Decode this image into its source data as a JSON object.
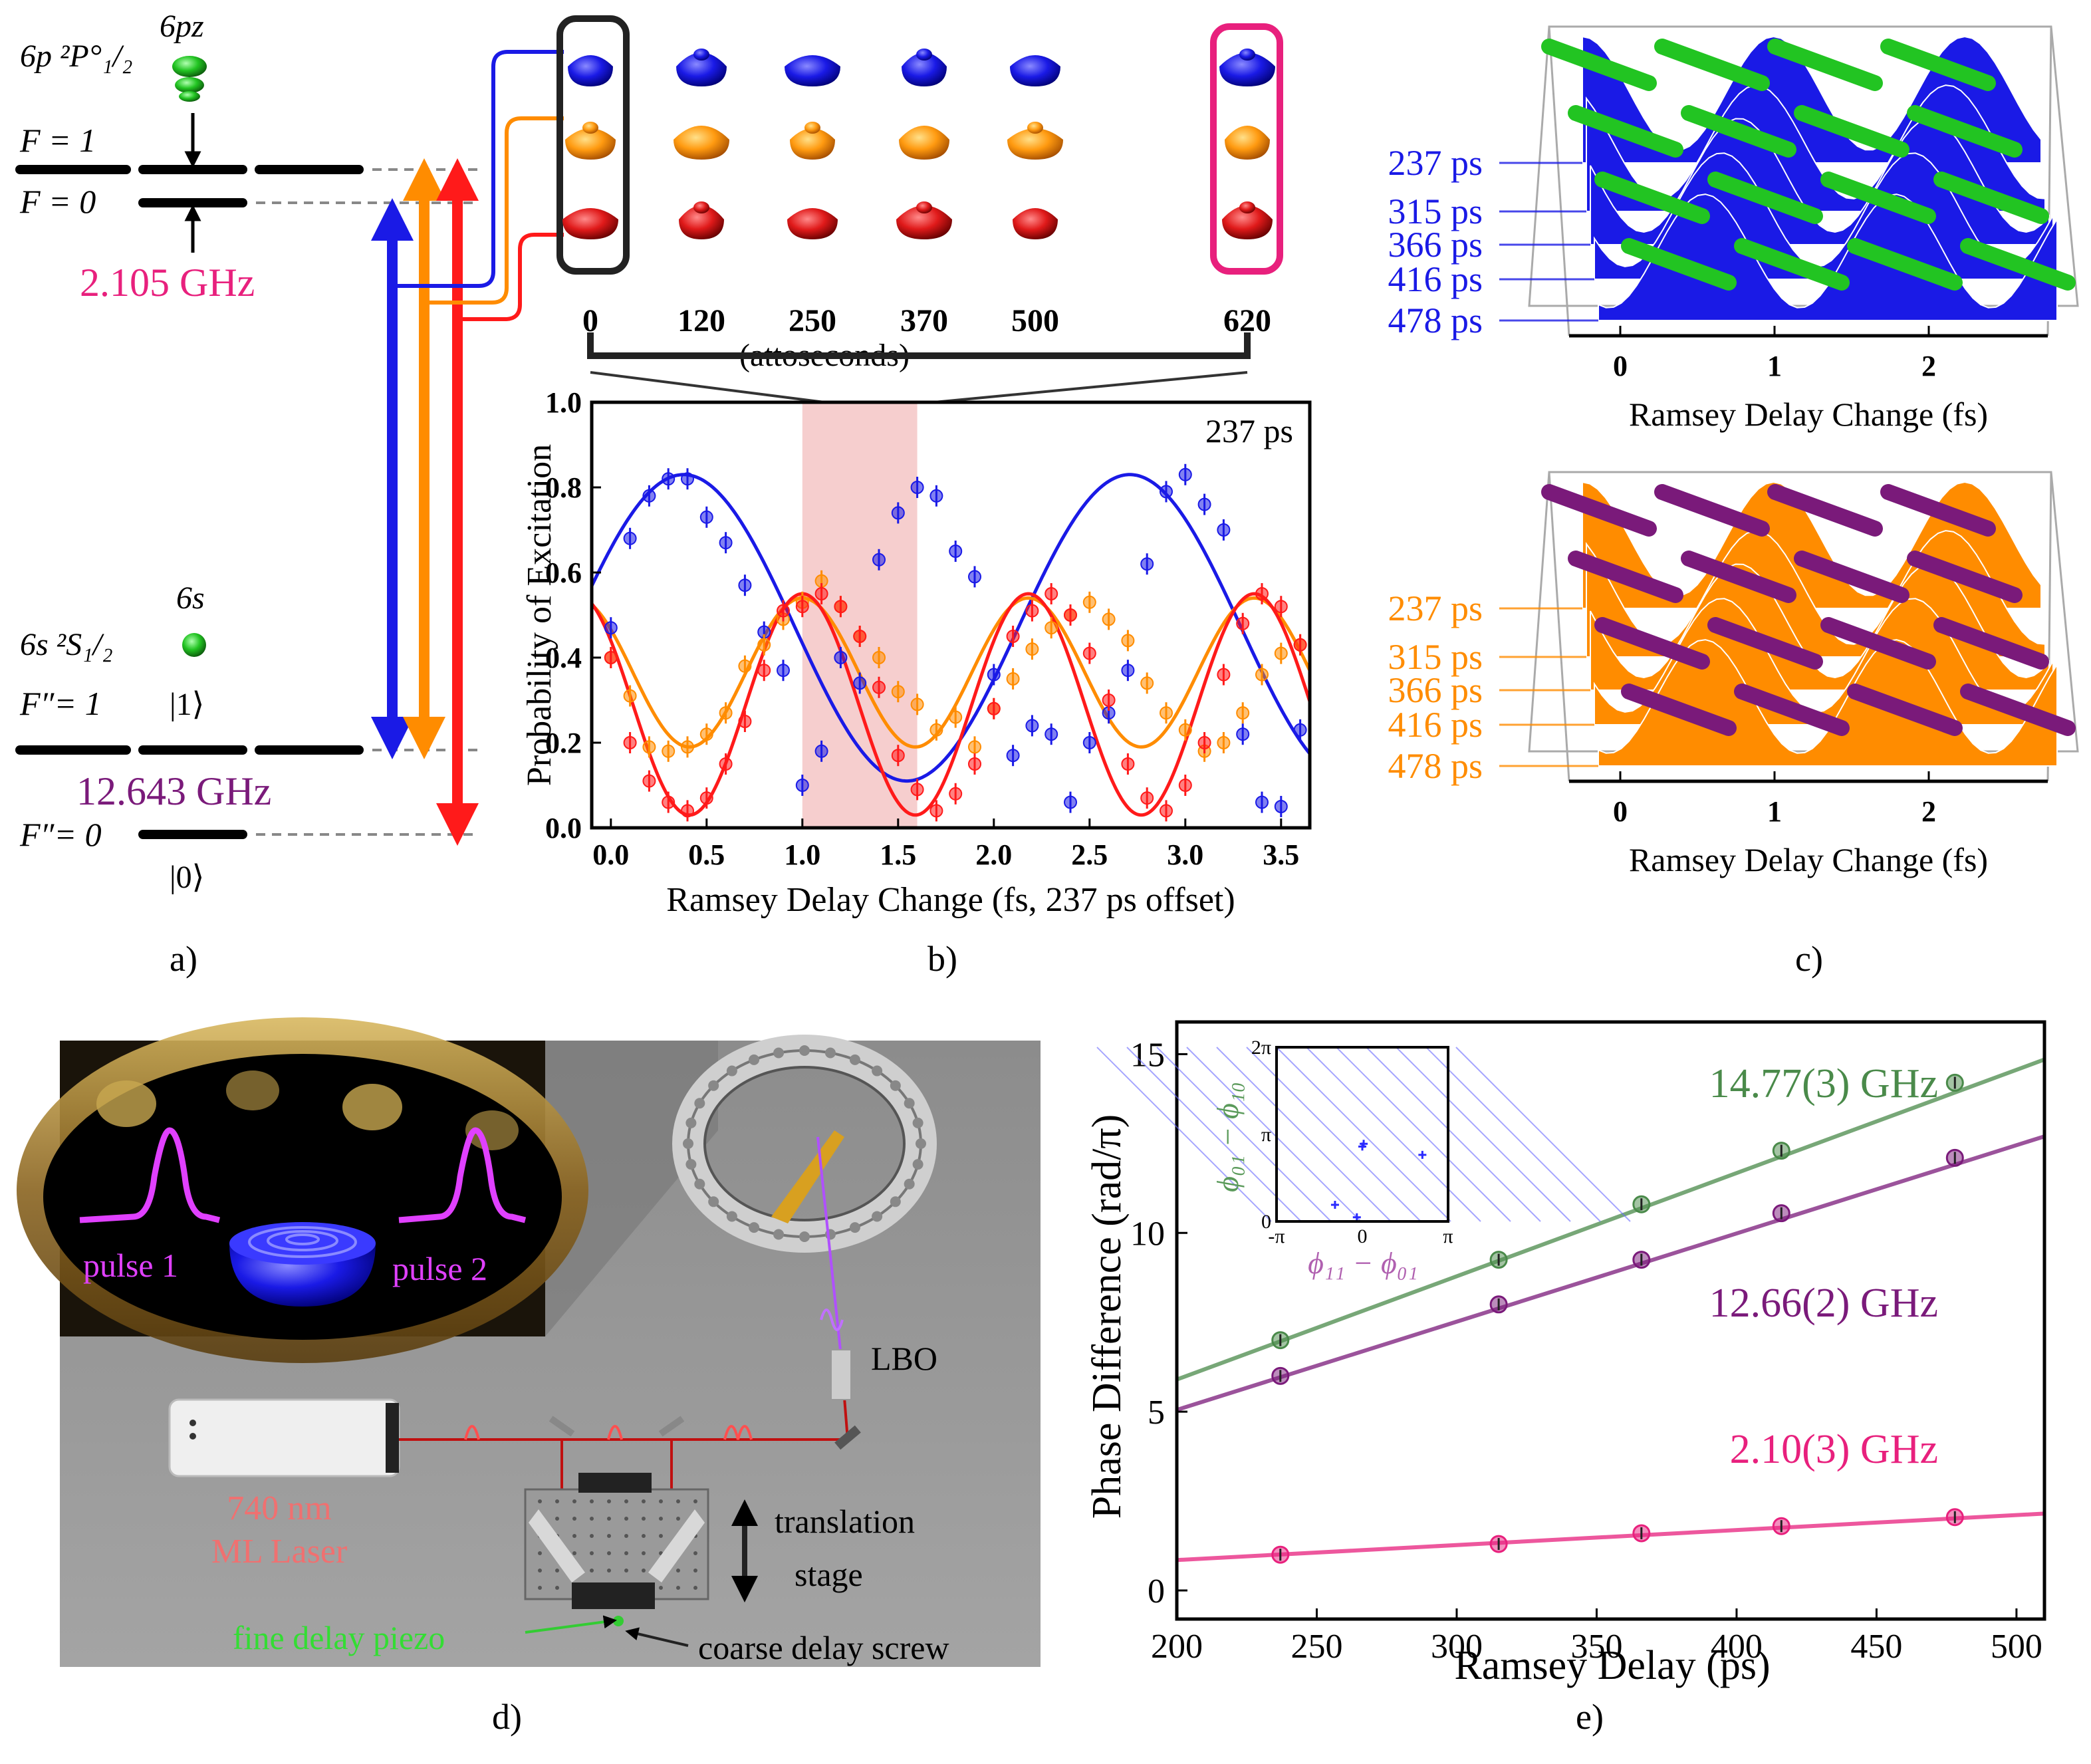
{
  "panel_labels": {
    "a": "a)",
    "b": "b)",
    "c": "c)",
    "d": "d)",
    "e": "e)"
  },
  "colors": {
    "blue": "#1a1ae6",
    "orange": "#ff8c00",
    "red": "#ff1a1a",
    "magenta": "#e8207d",
    "purple": "#7a1a7a",
    "green": "#4a8a4a",
    "pink": "#f5c6c6",
    "leaf_green": "#22c422"
  },
  "level_diagram": {
    "p_state": "6p ²P°₁/₂",
    "pz_label": "6pz",
    "f1": "F = 1",
    "f0": "F = 0",
    "p_splitting": "2.105 GHz",
    "s_state": "6s ²S₁/₂",
    "s_label": "6s",
    "ket1": "|1⟩",
    "fpp1": "F″= 1",
    "s_splitting": "12.643 GHz",
    "fpp0": "F″= 0",
    "ket0": "|0⟩"
  },
  "attosecond_axis": {
    "ticks": [
      "0",
      "120",
      "250",
      "370",
      "500",
      "620"
    ],
    "unit": "(attoseconds)"
  },
  "chart_data": [
    {
      "id": "b",
      "type": "scatter",
      "title": "",
      "annotation": "237 ps",
      "xlabel": "Ramsey Delay Change (fs, 237 ps offset)",
      "ylabel": "Probability of Excitation",
      "xlim": [
        -0.1,
        3.65
      ],
      "ylim": [
        0.0,
        1.0
      ],
      "xticks": [
        "0.0",
        "0.5",
        "1.0",
        "1.5",
        "2.0",
        "2.5",
        "3.0",
        "3.5"
      ],
      "yticks": [
        "0.0",
        "0.2",
        "0.4",
        "0.6",
        "0.8",
        "1.0"
      ],
      "shaded_region": [
        1.0,
        1.6
      ],
      "x": [
        0.0,
        0.1,
        0.2,
        0.3,
        0.4,
        0.5,
        0.6,
        0.7,
        0.8,
        0.9,
        1.0,
        1.1,
        1.2,
        1.3,
        1.4,
        1.5,
        1.6,
        1.7,
        1.8,
        1.9,
        2.0,
        2.1,
        2.2,
        2.3,
        2.4,
        2.5,
        2.6,
        2.7,
        2.8,
        2.9,
        3.0,
        3.1,
        3.2,
        3.3,
        3.4,
        3.5,
        3.6
      ],
      "series": [
        {
          "name": "|0⟩ → F=1",
          "color": "blue",
          "values": [
            0.47,
            0.68,
            0.78,
            0.82,
            0.82,
            0.73,
            0.67,
            0.57,
            0.46,
            0.37,
            0.1,
            0.18,
            0.4,
            0.34,
            0.63,
            0.74,
            0.8,
            0.78,
            0.65,
            0.59,
            0.36,
            0.17,
            0.24,
            0.22,
            0.06,
            0.2,
            0.27,
            0.37,
            0.62,
            0.79,
            0.83,
            0.76,
            0.7,
            0.22,
            0.06,
            0.05,
            0.23
          ]
        },
        {
          "name": "|1⟩ → F=0",
          "color": "orange",
          "values": [
            0.4,
            0.31,
            0.19,
            0.18,
            0.19,
            0.22,
            0.27,
            0.38,
            0.43,
            0.49,
            0.53,
            0.58,
            0.52,
            0.45,
            0.4,
            0.32,
            0.29,
            0.23,
            0.26,
            0.19,
            0.28,
            0.35,
            0.42,
            0.47,
            0.5,
            0.53,
            0.49,
            0.44,
            0.34,
            0.27,
            0.23,
            0.18,
            0.2,
            0.27,
            0.36,
            0.41,
            0.43
          ]
        },
        {
          "name": "|1⟩ → F=1",
          "color": "red",
          "values": [
            0.4,
            0.2,
            0.11,
            0.06,
            0.04,
            0.07,
            0.15,
            0.25,
            0.37,
            0.51,
            0.52,
            0.55,
            0.52,
            0.45,
            0.33,
            0.17,
            0.09,
            0.04,
            0.08,
            0.15,
            0.28,
            0.45,
            0.51,
            0.55,
            0.5,
            0.41,
            0.3,
            0.15,
            0.07,
            0.04,
            0.1,
            0.2,
            0.36,
            0.48,
            0.55,
            0.52,
            0.43
          ]
        }
      ],
      "fits": [
        {
          "color": "blue",
          "offset": 0.47,
          "amp": 0.36,
          "period": 2.33,
          "x_peak": 0.38
        },
        {
          "color": "orange",
          "offset": 0.365,
          "amp": 0.175,
          "period": 1.18,
          "x_peak": 1.0
        },
        {
          "color": "red",
          "offset": 0.29,
          "amp": 0.26,
          "period": 1.18,
          "x_peak": 1.0
        }
      ]
    },
    {
      "id": "c-top",
      "type": "area",
      "title": "",
      "xlabel": "Ramsey Delay Change (fs)",
      "xticks": [
        "0",
        "1",
        "2"
      ],
      "series_labels": [
        "237 ps",
        "315 ps",
        "366 ps",
        "416 ps",
        "478 ps"
      ],
      "fill_color": "blue",
      "stripe_color": "leaf_green"
    },
    {
      "id": "c-bottom",
      "type": "area",
      "title": "",
      "xlabel": "Ramsey Delay Change (fs)",
      "xticks": [
        "0",
        "1",
        "2"
      ],
      "series_labels": [
        "237 ps",
        "315 ps",
        "366 ps",
        "416 ps",
        "478 ps"
      ],
      "fill_color": "orange",
      "stripe_color": "purple"
    },
    {
      "id": "e",
      "type": "scatter",
      "title": "",
      "xlabel": "Ramsey Delay (ps)",
      "ylabel": "Phase Difference (rad/π)",
      "xlim": [
        200,
        510
      ],
      "ylim": [
        -0.8,
        15.9
      ],
      "xticks": [
        "200",
        "250",
        "300",
        "350",
        "400",
        "450",
        "500"
      ],
      "yticks": [
        "0",
        "5",
        "10",
        "15"
      ],
      "x": [
        237,
        315,
        366,
        416,
        478
      ],
      "series": [
        {
          "name": "14.77(3) GHz",
          "color": "green",
          "values": [
            7.0,
            9.25,
            10.8,
            12.3,
            14.2
          ],
          "fit": [
            [
              200,
              5.9
            ],
            [
              510,
              14.85
            ]
          ]
        },
        {
          "name": "12.66(2) GHz",
          "color": "purple",
          "values": [
            6.0,
            8.0,
            9.25,
            10.55,
            12.1
          ],
          "fit": [
            [
              200,
              5.05
            ],
            [
              510,
              12.7
            ]
          ]
        },
        {
          "name": "2.10(3) GHz",
          "color": "magenta",
          "values": [
            1.0,
            1.3,
            1.6,
            1.8,
            2.05
          ],
          "fit": [
            [
              200,
              0.85
            ],
            [
              510,
              2.15
            ]
          ]
        }
      ],
      "inset": {
        "xticks": [
          "-π",
          "0",
          "π"
        ],
        "yticks": [
          "0",
          "π",
          "2π"
        ],
        "xlabel": "ϕ₁₁ − ϕ₀₁",
        "ylabel": "ϕ₀₁ − ϕ₁₀",
        "points": [
          [
            -1.0,
            0.6
          ],
          [
            -0.2,
            0.15
          ],
          [
            0.05,
            2.8
          ],
          [
            2.2,
            2.4
          ],
          [
            0.0,
            2.7
          ]
        ]
      }
    }
  ],
  "setup": {
    "pulse1": "pulse 1",
    "pulse2": "pulse 2",
    "lbo": "LBO",
    "laser_line1": "740 nm",
    "laser_line2": "ML Laser",
    "stage_line1": "translation",
    "stage_line2": "stage",
    "piezo": "fine delay piezo",
    "screw": "coarse delay screw"
  }
}
